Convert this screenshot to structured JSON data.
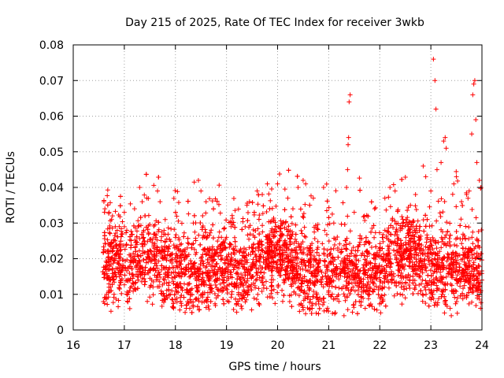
{
  "chart_data": {
    "type": "scatter",
    "title": "Day 215 of 2025, Rate Of TEC Index for receiver 3wkb",
    "xlabel": "GPS time / hours",
    "ylabel": "ROTI / TECUs",
    "xlim": [
      16,
      24
    ],
    "ylim": [
      0,
      0.08
    ],
    "xticks": [
      16,
      17,
      18,
      19,
      20,
      21,
      22,
      23,
      24
    ],
    "yticks": [
      0,
      0.01,
      0.02,
      0.03,
      0.04,
      0.05,
      0.06,
      0.07,
      0.08
    ],
    "xtick_labels": [
      "16",
      "17",
      "18",
      "19",
      "20",
      "21",
      "22",
      "23",
      "24"
    ],
    "ytick_labels": [
      "0",
      "0.01",
      "0.02",
      "0.03",
      "0.04",
      "0.05",
      "0.06",
      "0.07",
      "0.08"
    ],
    "grid": true,
    "marker": "+",
    "color": "#ff0000",
    "series": [
      {
        "name": "ROTI",
        "points": [
          [
            16.6,
            0.036
          ],
          [
            16.62,
            0.034
          ],
          [
            16.65,
            0.009
          ],
          [
            16.7,
            0.012
          ],
          [
            16.75,
            0.031
          ],
          [
            16.8,
            0.01
          ],
          [
            16.9,
            0.029
          ],
          [
            17.0,
            0.033
          ],
          [
            17.1,
            0.011
          ],
          [
            17.2,
            0.034
          ],
          [
            17.3,
            0.04
          ],
          [
            17.35,
            0.036
          ],
          [
            17.45,
            0.008
          ],
          [
            17.5,
            0.012
          ],
          [
            17.65,
            0.039
          ],
          [
            17.7,
            0.036
          ],
          [
            17.8,
            0.031
          ],
          [
            17.9,
            0.01
          ],
          [
            18.0,
            0.026
          ],
          [
            18.1,
            0.008
          ],
          [
            18.2,
            0.021
          ],
          [
            18.35,
            0.03
          ],
          [
            18.45,
            0.042
          ],
          [
            18.5,
            0.039
          ],
          [
            18.6,
            0.036
          ],
          [
            18.7,
            0.028
          ],
          [
            18.8,
            0.009
          ],
          [
            18.9,
            0.026
          ],
          [
            19.0,
            0.026
          ],
          [
            19.1,
            0.01
          ],
          [
            19.2,
            0.005
          ],
          [
            19.3,
            0.006
          ],
          [
            19.4,
            0.035
          ],
          [
            19.45,
            0.036
          ],
          [
            19.6,
            0.039
          ],
          [
            19.7,
            0.038
          ],
          [
            19.8,
            0.041
          ],
          [
            19.9,
            0.009
          ],
          [
            20.0,
            0.041
          ],
          [
            20.1,
            0.008
          ],
          [
            20.2,
            0.037
          ],
          [
            20.3,
            0.034
          ],
          [
            20.4,
            0.04
          ],
          [
            20.5,
            0.042
          ],
          [
            20.55,
            0.041
          ],
          [
            20.7,
            0.037
          ],
          [
            20.8,
            0.008
          ],
          [
            20.9,
            0.04
          ],
          [
            21.0,
            0.011
          ],
          [
            21.1,
            0.03
          ],
          [
            21.2,
            0.008
          ],
          [
            21.3,
            0.004
          ],
          [
            21.35,
            0.04
          ],
          [
            21.37,
            0.045
          ],
          [
            21.38,
            0.052
          ],
          [
            21.39,
            0.054
          ],
          [
            21.4,
            0.064
          ],
          [
            21.42,
            0.066
          ],
          [
            21.5,
            0.033
          ],
          [
            21.6,
            0.008
          ],
          [
            21.7,
            0.032
          ],
          [
            21.8,
            0.01
          ],
          [
            21.9,
            0.034
          ],
          [
            22.0,
            0.009
          ],
          [
            22.1,
            0.037
          ],
          [
            22.2,
            0.04
          ],
          [
            22.3,
            0.039
          ],
          [
            22.4,
            0.01
          ],
          [
            22.5,
            0.009
          ],
          [
            22.6,
            0.035
          ],
          [
            22.7,
            0.038
          ],
          [
            22.8,
            0.011
          ],
          [
            22.85,
            0.046
          ],
          [
            22.9,
            0.043
          ],
          [
            23.0,
            0.039
          ],
          [
            23.05,
            0.076
          ],
          [
            23.08,
            0.07
          ],
          [
            23.1,
            0.062
          ],
          [
            23.12,
            0.045
          ],
          [
            23.2,
            0.047
          ],
          [
            23.25,
            0.053
          ],
          [
            23.28,
            0.054
          ],
          [
            23.3,
            0.051
          ],
          [
            23.4,
            0.004
          ],
          [
            23.45,
            0.041
          ],
          [
            23.5,
            0.043
          ],
          [
            23.6,
            0.036
          ],
          [
            23.7,
            0.038
          ],
          [
            23.75,
            0.039
          ],
          [
            23.8,
            0.055
          ],
          [
            23.82,
            0.066
          ],
          [
            23.84,
            0.069
          ],
          [
            23.86,
            0.07
          ],
          [
            23.88,
            0.059
          ],
          [
            23.9,
            0.047
          ],
          [
            23.95,
            0.042
          ],
          [
            23.98,
            0.04
          ],
          [
            24.0,
            0.014
          ]
        ],
        "bulk": {
          "x_range": [
            16.58,
            24.0
          ],
          "y_typical_range": [
            0.008,
            0.03
          ],
          "y_center": 0.018,
          "point_count": 6000
        }
      }
    ]
  }
}
